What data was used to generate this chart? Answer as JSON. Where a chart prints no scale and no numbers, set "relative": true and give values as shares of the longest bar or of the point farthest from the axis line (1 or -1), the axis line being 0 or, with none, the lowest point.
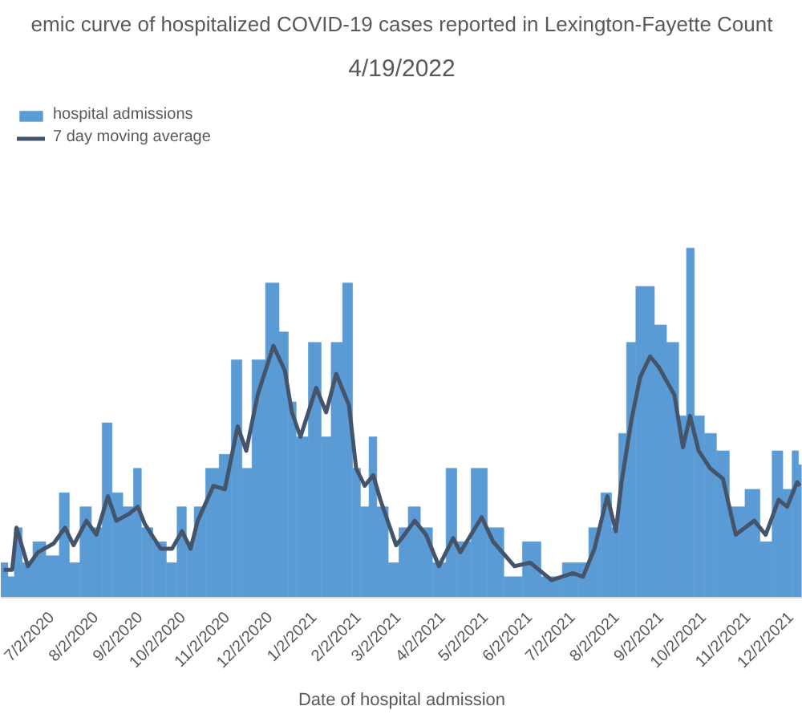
{
  "chart_data": {
    "type": "bar",
    "title": "emic curve of hospitalized COVID-19 cases reported in Lexington-Fayette Count",
    "subtitle": "4/19/2022",
    "xlabel": "Date of hospital admission",
    "relative": true,
    "legend": "top left",
    "grid": false,
    "x": [
      "2020-05-29",
      "2020-06-04",
      "2020-06-07",
      "2020-06-15",
      "2020-06-22",
      "2020-07-03",
      "2020-07-11",
      "2020-07-17",
      "2020-07-26",
      "2020-08-02",
      "2020-08-10",
      "2020-08-16",
      "2020-08-25",
      "2020-08-31",
      "2020-09-05",
      "2020-09-16",
      "2020-09-24",
      "2020-10-01",
      "2020-10-07",
      "2020-10-12",
      "2020-10-23",
      "2020-10-31",
      "2020-11-09",
      "2020-11-15",
      "2020-11-23",
      "2020-12-04",
      "2020-12-12",
      "2020-12-17",
      "2020-12-23",
      "2021-01-03",
      "2021-01-10",
      "2021-01-17",
      "2021-01-26",
      "2021-01-31",
      "2021-02-06",
      "2021-02-12",
      "2021-02-17",
      "2021-02-28",
      "2021-03-04",
      "2021-03-13",
      "2021-03-21",
      "2021-03-30",
      "2021-04-09",
      "2021-04-14",
      "2021-04-29",
      "2021-05-07",
      "2021-05-22",
      "2021-06-02",
      "2021-06-17",
      "2021-07-02",
      "2021-07-09",
      "2021-07-17",
      "2021-07-26",
      "2021-08-01",
      "2021-08-05",
      "2021-08-12",
      "2021-08-18",
      "2021-08-25",
      "2021-08-31",
      "2021-09-11",
      "2021-09-17",
      "2021-09-22",
      "2021-09-28",
      "2021-10-06",
      "2021-10-15",
      "2021-10-24",
      "2021-11-06",
      "2021-11-14",
      "2021-11-23",
      "2021-11-29",
      "2021-12-06",
      "2021-12-08"
    ],
    "xlim": [
      "2020-05-27",
      "2021-12-10"
    ],
    "xticks": [
      {
        "value": "2020-07-02",
        "label": "7/2/2020"
      },
      {
        "value": "2020-08-02",
        "label": "8/2/2020"
      },
      {
        "value": "2020-09-02",
        "label": "9/2/2020"
      },
      {
        "value": "2020-10-02",
        "label": "10/2/2020"
      },
      {
        "value": "2020-11-02",
        "label": "11/2/2020"
      },
      {
        "value": "2020-12-02",
        "label": "12/2/2020"
      },
      {
        "value": "2021-01-02",
        "label": "1/2/2021"
      },
      {
        "value": "2021-02-02",
        "label": "2/2/2021"
      },
      {
        "value": "2021-03-02",
        "label": "3/2/2021"
      },
      {
        "value": "2021-04-02",
        "label": "4/2/2021"
      },
      {
        "value": "2021-05-02",
        "label": "5/2/2021"
      },
      {
        "value": "2021-06-02",
        "label": "6/2/2021"
      },
      {
        "value": "2021-07-02",
        "label": "7/2/2021"
      },
      {
        "value": "2021-08-02",
        "label": "8/2/2021"
      },
      {
        "value": "2021-09-02",
        "label": "9/2/2021"
      },
      {
        "value": "2021-10-02",
        "label": "10/2/2021"
      },
      {
        "value": "2021-11-02",
        "label": "11/2/2021"
      },
      {
        "value": "2021-12-02",
        "label": "12/2/2021"
      }
    ],
    "series": [
      {
        "name": "hospital admissions",
        "color": "#5b9bd5",
        "values": [
          0.1,
          0.06,
          0.2,
          0.1,
          0.16,
          0.12,
          0.3,
          0.1,
          0.26,
          0.2,
          0.5,
          0.3,
          0.26,
          0.37,
          0.2,
          0.16,
          0.1,
          0.26,
          0.16,
          0.26,
          0.37,
          0.41,
          0.68,
          0.37,
          0.68,
          0.9,
          0.76,
          0.56,
          0.46,
          0.73,
          0.46,
          0.73,
          0.9,
          0.37,
          0.26,
          0.46,
          0.26,
          0.1,
          0.2,
          0.26,
          0.2,
          0.1,
          0.37,
          0.16,
          0.37,
          0.2,
          0.06,
          0.16,
          0.06,
          0.1,
          0.1,
          0.2,
          0.3,
          0.2,
          0.47,
          0.73,
          0.89,
          0.89,
          0.78,
          0.73,
          0.52,
          1.0,
          0.52,
          0.47,
          0.42,
          0.26,
          0.31,
          0.16,
          0.42,
          0.31,
          0.42,
          0.38
        ]
      },
      {
        "name": "7 day moving average",
        "type": "line",
        "color": "#44546a",
        "values": [
          0.08,
          0.08,
          0.2,
          0.09,
          0.13,
          0.155,
          0.2,
          0.15,
          0.22,
          0.18,
          0.29,
          0.22,
          0.24,
          0.26,
          0.21,
          0.14,
          0.14,
          0.19,
          0.14,
          0.22,
          0.32,
          0.31,
          0.49,
          0.42,
          0.58,
          0.72,
          0.65,
          0.53,
          0.46,
          0.6,
          0.53,
          0.64,
          0.55,
          0.37,
          0.32,
          0.35,
          0.28,
          0.15,
          0.17,
          0.22,
          0.18,
          0.09,
          0.17,
          0.13,
          0.23,
          0.16,
          0.09,
          0.1,
          0.05,
          0.07,
          0.06,
          0.14,
          0.29,
          0.19,
          0.33,
          0.51,
          0.63,
          0.69,
          0.66,
          0.58,
          0.43,
          0.52,
          0.42,
          0.37,
          0.34,
          0.18,
          0.22,
          0.18,
          0.28,
          0.26,
          0.33,
          0.32
        ]
      }
    ]
  }
}
